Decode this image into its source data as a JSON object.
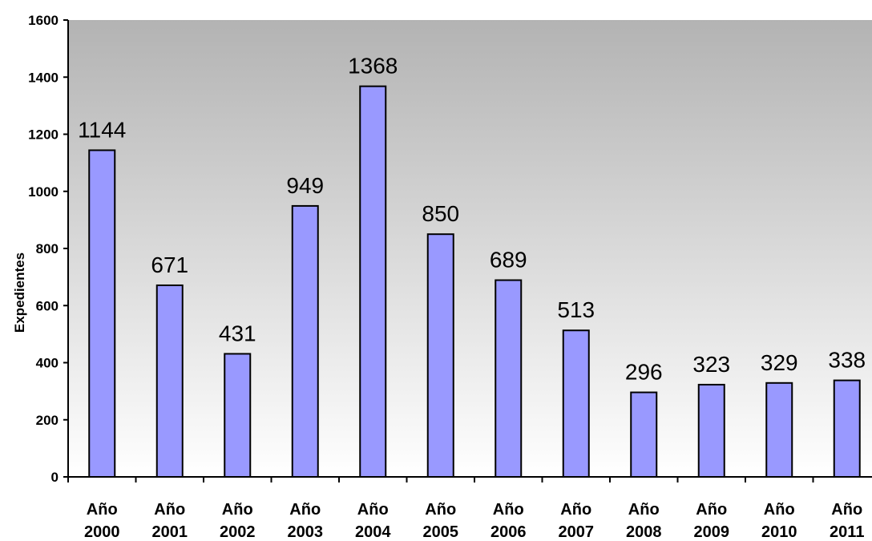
{
  "chart_data": {
    "type": "bar",
    "title": "",
    "xlabel": "",
    "ylabel": "Expedientes",
    "ylim": [
      0,
      1600
    ],
    "yticks": [
      0,
      200,
      400,
      600,
      800,
      1000,
      1200,
      1400,
      1600
    ],
    "grid": false,
    "legend": "none",
    "categories": [
      [
        "Año",
        "2000"
      ],
      [
        "Año",
        "2001"
      ],
      [
        "Año",
        "2002"
      ],
      [
        "Año",
        "2003"
      ],
      [
        "Año",
        "2004"
      ],
      [
        "Año",
        "2005"
      ],
      [
        "Año",
        "2006"
      ],
      [
        "Año",
        "2007"
      ],
      [
        "Año",
        "2008"
      ],
      [
        "Año",
        "2009"
      ],
      [
        "Año",
        "2010"
      ],
      [
        "Año",
        "2011"
      ]
    ],
    "values": [
      1144,
      671,
      431,
      949,
      1368,
      850,
      689,
      513,
      296,
      323,
      329,
      338
    ],
    "colors": {
      "bar_fill": "#9999ff",
      "bar_stroke": "#000000",
      "plot_bg_top": "#b3b3b3",
      "plot_bg_bottom": "#ffffff"
    }
  }
}
